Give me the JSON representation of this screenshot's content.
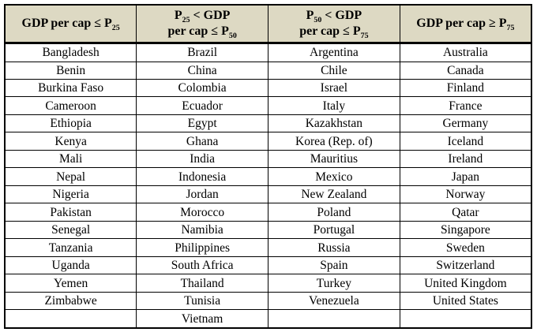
{
  "colors": {
    "header_bg": "#ddd9c3",
    "border": "#000000",
    "text": "#000000",
    "page_bg": "#ffffff"
  },
  "table": {
    "headers": [
      {
        "name": "col-1-low-quartile",
        "lines": [
          [
            {
              "t": "GDP per cap ≤ P"
            },
            {
              "t": "25",
              "sub": true
            }
          ]
        ]
      },
      {
        "name": "col-2-second-quartile",
        "lines": [
          [
            {
              "t": "P"
            },
            {
              "t": "25",
              "sub": true
            },
            {
              "t": " < GDP"
            }
          ],
          [
            {
              "t": "per cap ≤ P"
            },
            {
              "t": "50",
              "sub": true
            }
          ]
        ]
      },
      {
        "name": "col-3-third-quartile",
        "lines": [
          [
            {
              "t": "P"
            },
            {
              "t": "50",
              "sub": true
            },
            {
              "t": " < GDP"
            }
          ],
          [
            {
              "t": "per cap ≤ P"
            },
            {
              "t": "75",
              "sub": true
            }
          ]
        ]
      },
      {
        "name": "col-4-top-quartile",
        "lines": [
          [
            {
              "t": "GDP per cap ≥ P"
            },
            {
              "t": "75",
              "sub": true
            }
          ]
        ]
      }
    ],
    "rows": [
      [
        "Bangladesh",
        "Brazil",
        "Argentina",
        "Australia"
      ],
      [
        "Benin",
        "China",
        "Chile",
        "Canada"
      ],
      [
        "Burkina Faso",
        "Colombia",
        "Israel",
        "Finland"
      ],
      [
        "Cameroon",
        "Ecuador",
        "Italy",
        "France"
      ],
      [
        "Ethiopia",
        "Egypt",
        "Kazakhstan",
        "Germany"
      ],
      [
        "Kenya",
        "Ghana",
        "Korea (Rep. of)",
        "Iceland"
      ],
      [
        "Mali",
        "India",
        "Mauritius",
        "Ireland"
      ],
      [
        "Nepal",
        "Indonesia",
        "Mexico",
        "Japan"
      ],
      [
        "Nigeria",
        "Jordan",
        "New Zealand",
        "Norway"
      ],
      [
        "Pakistan",
        "Morocco",
        "Poland",
        "Qatar"
      ],
      [
        "Senegal",
        "Namibia",
        "Portugal",
        "Singapore"
      ],
      [
        "Tanzania",
        "Philippines",
        "Russia",
        "Sweden"
      ],
      [
        "Uganda",
        "South Africa",
        "Spain",
        "Switzerland"
      ],
      [
        "Yemen",
        "Thailand",
        "Turkey",
        "United Kingdom"
      ],
      [
        "Zimbabwe",
        "Tunisia",
        "Venezuela",
        "United States"
      ],
      [
        "",
        "Vietnam",
        "",
        ""
      ]
    ]
  }
}
